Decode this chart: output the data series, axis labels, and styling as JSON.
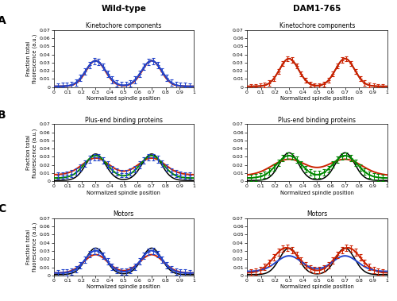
{
  "title_left": "Wild-type",
  "title_right": "DAM1-765",
  "row_titles": [
    "Kinetochore components",
    "Plus-end binding proteins",
    "Motors"
  ],
  "row_labels": [
    "A",
    "B",
    "C"
  ],
  "xlabel": "Normalized spindle position",
  "ylabel": "Fraction total\nfluorescence (a.u.)",
  "ylim": [
    0,
    0.07
  ],
  "xlim": [
    0,
    1
  ],
  "yticks": [
    0,
    0.01,
    0.02,
    0.03,
    0.04,
    0.05,
    0.06,
    0.07
  ],
  "xticks": [
    0,
    0.1,
    0.2,
    0.3,
    0.4,
    0.5,
    0.6,
    0.7,
    0.8,
    0.9,
    1.0
  ],
  "panels": {
    "A_wt": {
      "nuf2": {
        "amp": 0.063,
        "mu1": 0.3,
        "mu2": 0.7,
        "sig": 0.07,
        "base": 0.001
      },
      "curves": [
        {
          "color": "#cc2200",
          "amp": 0.063,
          "mu1": 0.3,
          "mu2": 0.7,
          "sig": 0.068,
          "base": 0.001
        },
        {
          "color": "#2244cc",
          "amp": 0.063,
          "mu1": 0.3,
          "mu2": 0.7,
          "sig": 0.072,
          "base": 0.001
        }
      ],
      "eb": {
        "color": "#2244cc",
        "amp": 0.063,
        "mu1": 0.3,
        "mu2": 0.7,
        "sig": 0.072,
        "base": 0.001,
        "err": 0.004
      }
    },
    "A_dam": {
      "nuf2": {
        "amp": 0.068,
        "mu1": 0.3,
        "mu2": 0.7,
        "sig": 0.068,
        "base": 0.001
      },
      "curves": [
        {
          "color": "#cc2200",
          "amp": 0.068,
          "mu1": 0.3,
          "mu2": 0.7,
          "sig": 0.068,
          "base": 0.001
        }
      ],
      "eb": {
        "color": "#cc2200",
        "amp": 0.068,
        "mu1": 0.3,
        "mu2": 0.7,
        "sig": 0.068,
        "base": 0.001,
        "err": 0.003
      }
    },
    "B_wt": {
      "nuf2": {
        "amp": 0.065,
        "mu1": 0.3,
        "mu2": 0.7,
        "sig": 0.07,
        "base": 0.001
      },
      "curves": [
        {
          "color": "#cc2200",
          "amp": 0.041,
          "mu1": 0.3,
          "mu2": 0.7,
          "sig": 0.095,
          "base": 0.008
        },
        {
          "color": "#008800",
          "amp": 0.055,
          "mu1": 0.3,
          "mu2": 0.7,
          "sig": 0.082,
          "base": 0.004
        }
      ],
      "eb": {
        "color": "#2244cc",
        "amp": 0.046,
        "mu1": 0.3,
        "mu2": 0.7,
        "sig": 0.082,
        "base": 0.007,
        "err": 0.004
      }
    },
    "B_dam": {
      "nuf2": {
        "amp": 0.068,
        "mu1": 0.3,
        "mu2": 0.7,
        "sig": 0.068,
        "base": 0.001
      },
      "curves": [
        {
          "color": "#cc2200",
          "amp": 0.04,
          "mu1": 0.3,
          "mu2": 0.7,
          "sig": 0.12,
          "base": 0.007
        },
        {
          "color": "#008800",
          "amp": 0.055,
          "mu1": 0.3,
          "mu2": 0.7,
          "sig": 0.088,
          "base": 0.004
        }
      ],
      "eb": {
        "color": "#008800",
        "amp": 0.055,
        "mu1": 0.3,
        "mu2": 0.7,
        "sig": 0.088,
        "base": 0.004,
        "err": 0.004
      }
    },
    "C_wt": {
      "nuf2": {
        "amp": 0.065,
        "mu1": 0.3,
        "mu2": 0.7,
        "sig": 0.07,
        "base": 0.001
      },
      "curves": [
        {
          "color": "#cc2200",
          "amp": 0.045,
          "mu1": 0.3,
          "mu2": 0.7,
          "sig": 0.085,
          "base": 0.003
        },
        {
          "color": "#2244cc",
          "amp": 0.055,
          "mu1": 0.3,
          "mu2": 0.7,
          "sig": 0.075,
          "base": 0.003
        }
      ],
      "eb": {
        "color": "#2244cc",
        "amp": 0.055,
        "mu1": 0.3,
        "mu2": 0.7,
        "sig": 0.075,
        "base": 0.003,
        "err": 0.004
      }
    },
    "C_dam": {
      "nuf2": {
        "amp": 0.065,
        "mu1": 0.3,
        "mu2": 0.7,
        "sig": 0.068,
        "base": 0.001
      },
      "curves": [
        {
          "color": "#cc2200",
          "amp": 0.062,
          "mu1": 0.28,
          "mu2": 0.72,
          "sig": 0.09,
          "base": 0.003
        },
        {
          "color": "#2244cc",
          "amp": 0.038,
          "mu1": 0.3,
          "mu2": 0.7,
          "sig": 0.09,
          "base": 0.005
        }
      ],
      "eb": {
        "color": "#cc2200",
        "amp": 0.062,
        "mu1": 0.28,
        "mu2": 0.72,
        "sig": 0.09,
        "base": 0.003,
        "err": 0.004
      }
    }
  }
}
